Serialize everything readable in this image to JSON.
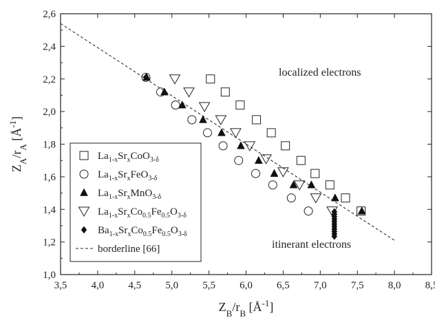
{
  "chart_data": {
    "type": "scatter",
    "xlim": [
      3.5,
      8.5
    ],
    "ylim": [
      1.0,
      2.6
    ],
    "x_ticks": [
      "3,5",
      "4,0",
      "4,5",
      "5,0",
      "5,5",
      "6,0",
      "6,5",
      "7,0",
      "7,5",
      "8,0",
      "8,5"
    ],
    "y_ticks": [
      "1,0",
      "1,2",
      "1,4",
      "1,6",
      "1,8",
      "2,0",
      "2,2",
      "2,4",
      "2,6"
    ],
    "xlabel": {
      "main": "Z",
      "sub": "B",
      "slash": "/r",
      "sub2": "B",
      "unit": " [Å",
      "sup": "-1",
      "close": "]"
    },
    "ylabel": {
      "main": "Z",
      "sub": "A",
      "slash": "/r",
      "sub2": "A",
      "unit": " [Å",
      "sup": "-1",
      "close": "]"
    },
    "annotations": {
      "localized": "localized electrons",
      "itinerant": "itinerant electrons"
    },
    "series": [
      {
        "name": "La1-xSrxCoO3-δ",
        "legend_parts": [
          [
            "La",
            ""
          ],
          [
            "1-x",
            "sub"
          ],
          [
            "Sr",
            ""
          ],
          [
            "x",
            "sub"
          ],
          [
            "CoO",
            ""
          ],
          [
            "3-δ",
            "sub"
          ]
        ],
        "marker": "square-open",
        "points": [
          [
            5.52,
            2.2
          ],
          [
            5.72,
            2.12
          ],
          [
            5.92,
            2.04
          ],
          [
            6.14,
            1.95
          ],
          [
            6.34,
            1.87
          ],
          [
            6.53,
            1.79
          ],
          [
            6.74,
            1.7
          ],
          [
            6.93,
            1.62
          ],
          [
            7.13,
            1.55
          ],
          [
            7.34,
            1.47
          ],
          [
            7.55,
            1.39
          ]
        ]
      },
      {
        "name": "La1-xSrxFeO3-δ",
        "legend_parts": [
          [
            "La",
            ""
          ],
          [
            "1-x",
            "sub"
          ],
          [
            "Sr",
            ""
          ],
          [
            "x",
            "sub"
          ],
          [
            "FeO",
            ""
          ],
          [
            "3-δ",
            "sub"
          ]
        ],
        "marker": "circle-open",
        "points": [
          [
            4.65,
            2.21
          ],
          [
            4.85,
            2.12
          ],
          [
            5.05,
            2.04
          ],
          [
            5.27,
            1.95
          ],
          [
            5.48,
            1.87
          ],
          [
            5.69,
            1.79
          ],
          [
            5.9,
            1.7
          ],
          [
            6.13,
            1.62
          ],
          [
            6.36,
            1.55
          ],
          [
            6.61,
            1.47
          ],
          [
            6.84,
            1.39
          ]
        ]
      },
      {
        "name": "La1-xSrxMnO3-δ",
        "legend_parts": [
          [
            "La",
            ""
          ],
          [
            "1-x",
            "sub"
          ],
          [
            "Sr",
            ""
          ],
          [
            "x",
            "sub"
          ],
          [
            "MnO",
            ""
          ],
          [
            "3-δ",
            "sub"
          ]
        ],
        "marker": "triangle-filled",
        "points": [
          [
            4.66,
            2.21
          ],
          [
            4.9,
            2.12
          ],
          [
            5.14,
            2.04
          ],
          [
            5.42,
            1.95
          ],
          [
            5.67,
            1.87
          ],
          [
            5.93,
            1.79
          ],
          [
            6.17,
            1.7
          ],
          [
            6.38,
            1.62
          ],
          [
            6.64,
            1.55
          ],
          [
            6.88,
            1.55
          ],
          [
            7.2,
            1.47
          ],
          [
            7.56,
            1.39
          ]
        ]
      },
      {
        "name": "La1-xSrxCo0.5Fe0.5O3-δ",
        "legend_parts": [
          [
            "La",
            ""
          ],
          [
            "1-x",
            "sub"
          ],
          [
            "Sr",
            ""
          ],
          [
            "x",
            "sub"
          ],
          [
            "Co",
            ""
          ],
          [
            "0.5",
            "sub"
          ],
          [
            "Fe",
            ""
          ],
          [
            "0.5",
            "sub"
          ],
          [
            "O",
            ""
          ],
          [
            "3-δ",
            "sub"
          ]
        ],
        "marker": "triangle-down-open",
        "points": [
          [
            5.04,
            2.2
          ],
          [
            5.23,
            2.12
          ],
          [
            5.44,
            2.03
          ],
          [
            5.66,
            1.95
          ],
          [
            5.86,
            1.87
          ],
          [
            6.05,
            1.79
          ],
          [
            6.27,
            1.71
          ],
          [
            6.5,
            1.63
          ],
          [
            6.72,
            1.55
          ],
          [
            6.94,
            1.47
          ],
          [
            7.16,
            1.39
          ]
        ]
      },
      {
        "name": "Ba1-xSrxCo0.5Fe0.5O3-δ",
        "legend_parts": [
          [
            "Ba",
            ""
          ],
          [
            "1-x",
            "sub"
          ],
          [
            "Sr",
            ""
          ],
          [
            "x",
            "sub"
          ],
          [
            "Co",
            ""
          ],
          [
            "0.5",
            "sub"
          ],
          [
            "Fe",
            ""
          ],
          [
            "0.5",
            "sub"
          ],
          [
            "O",
            ""
          ],
          [
            "3-δ",
            "sub"
          ]
        ],
        "marker": "diamond-filled",
        "points": [
          [
            4.65,
            2.21
          ],
          [
            7.19,
            1.385
          ],
          [
            7.19,
            1.37
          ],
          [
            7.19,
            1.355
          ],
          [
            7.19,
            1.34
          ],
          [
            7.19,
            1.325
          ],
          [
            7.19,
            1.31
          ],
          [
            7.19,
            1.295
          ],
          [
            7.19,
            1.28
          ],
          [
            7.19,
            1.265
          ],
          [
            7.19,
            1.25
          ],
          [
            7.19,
            1.235
          ]
        ]
      }
    ],
    "borderline": {
      "name": "borderline [66]",
      "points": [
        [
          3.5,
          2.54
        ],
        [
          8.0,
          1.21
        ]
      ]
    }
  }
}
